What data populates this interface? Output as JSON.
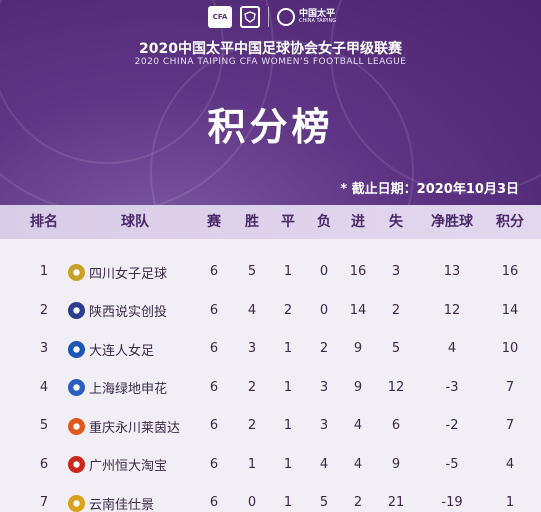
{
  "logos": {
    "cfa_text": "CFA",
    "sponsor_cn": "中国太平",
    "sponsor_en": "CHINA TAIPING"
  },
  "league": {
    "title_cn": "2020中国太平中国足球协会女子甲级联赛",
    "title_en": "2020 CHINA TAIPING CFA WOMEN’S FOOTBALL LEAGUE"
  },
  "title": "积分榜",
  "deadline": "* 截止日期：2020年10月3日",
  "columns": [
    "排名",
    "球队",
    "赛",
    "胜",
    "平",
    "负",
    "进",
    "失",
    "净胜球",
    "积分"
  ],
  "rows": [
    {
      "rank": "1",
      "team": "四川女子足球",
      "played": "6",
      "win": "5",
      "draw": "1",
      "loss": "0",
      "gf": "16",
      "ga": "3",
      "gd": "13",
      "pts": "16",
      "icon": "sichuan-badge-icon",
      "color": "#c9a227"
    },
    {
      "rank": "2",
      "team": "陕西说实创投",
      "played": "6",
      "win": "4",
      "draw": "2",
      "loss": "0",
      "gf": "14",
      "ga": "2",
      "gd": "12",
      "pts": "14",
      "icon": "shaanxi-badge-icon",
      "color": "#2b3d8f"
    },
    {
      "rank": "3",
      "team": "大连人女足",
      "played": "6",
      "win": "3",
      "draw": "1",
      "loss": "2",
      "gf": "9",
      "ga": "5",
      "gd": "4",
      "pts": "10",
      "icon": "dalian-badge-icon",
      "color": "#1d57b5"
    },
    {
      "rank": "4",
      "team": "上海绿地申花",
      "played": "6",
      "win": "2",
      "draw": "1",
      "loss": "3",
      "gf": "9",
      "ga": "12",
      "gd": "-3",
      "pts": "7",
      "icon": "shanghai-badge-icon",
      "color": "#2a5fc0"
    },
    {
      "rank": "5",
      "team": "重庆永川莱茵达",
      "played": "6",
      "win": "2",
      "draw": "1",
      "loss": "3",
      "gf": "4",
      "ga": "6",
      "gd": "-2",
      "pts": "7",
      "icon": "chongqing-badge-icon",
      "color": "#e2571e"
    },
    {
      "rank": "6",
      "team": "广州恒大淘宝",
      "played": "6",
      "win": "1",
      "draw": "1",
      "loss": "4",
      "gf": "4",
      "ga": "9",
      "gd": "-5",
      "pts": "4",
      "icon": "guangzhou-badge-icon",
      "color": "#c8281e"
    },
    {
      "rank": "7",
      "team": "云南佳仕景",
      "played": "6",
      "win": "0",
      "draw": "1",
      "loss": "5",
      "gf": "2",
      "ga": "21",
      "gd": "-19",
      "pts": "1",
      "icon": "yunnan-badge-icon",
      "color": "#d9a21a"
    }
  ]
}
